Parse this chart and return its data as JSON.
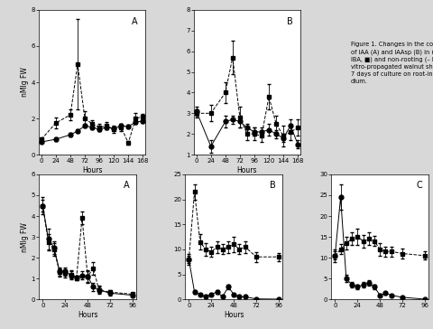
{
  "top_A": {
    "hours": [
      0,
      24,
      48,
      60,
      72,
      84,
      96,
      108,
      120,
      132,
      144,
      156,
      168
    ],
    "squares": [
      0.85,
      1.75,
      2.2,
      5.0,
      2.0,
      1.7,
      1.5,
      1.6,
      1.4,
      1.5,
      0.65,
      2.0,
      2.1
    ],
    "squares_err": [
      0.1,
      0.3,
      0.3,
      2.5,
      0.4,
      0.2,
      0.2,
      0.2,
      0.2,
      0.2,
      0.1,
      0.3,
      0.15
    ],
    "circles": [
      0.7,
      0.85,
      1.1,
      1.3,
      1.6,
      1.5,
      1.4,
      1.5,
      1.45,
      1.6,
      1.55,
      1.8,
      1.85
    ],
    "circles_err": [
      0.05,
      0.08,
      0.1,
      0.12,
      0.12,
      0.1,
      0.1,
      0.1,
      0.1,
      0.1,
      0.1,
      0.1,
      0.1
    ],
    "ylim": [
      0,
      8
    ],
    "yticks": [
      0,
      2,
      4,
      6,
      8
    ],
    "label": "A"
  },
  "top_B": {
    "hours": [
      0,
      24,
      48,
      60,
      72,
      84,
      96,
      108,
      120,
      132,
      144,
      156,
      168
    ],
    "squares": [
      3.0,
      3.0,
      4.0,
      5.7,
      2.8,
      2.0,
      2.0,
      1.9,
      3.8,
      2.5,
      1.9,
      2.1,
      2.3
    ],
    "squares_err": [
      0.2,
      0.4,
      0.5,
      0.8,
      0.5,
      0.3,
      0.3,
      0.3,
      0.6,
      0.4,
      0.5,
      0.4,
      0.4
    ],
    "circles": [
      3.1,
      1.4,
      2.6,
      2.7,
      2.6,
      2.3,
      2.1,
      2.1,
      2.2,
      2.0,
      1.8,
      2.4,
      1.5
    ],
    "circles_err": [
      0.2,
      0.3,
      0.3,
      0.2,
      0.3,
      0.2,
      0.2,
      0.2,
      0.3,
      0.2,
      0.2,
      0.3,
      0.2
    ],
    "ylim": [
      1,
      8
    ],
    "yticks": [
      1,
      2,
      3,
      4,
      5,
      6,
      7,
      8
    ],
    "label": "B"
  },
  "bot_A": {
    "hours": [
      0,
      6,
      12,
      18,
      24,
      30,
      36,
      42,
      48,
      54,
      60,
      72,
      96
    ],
    "squares": [
      4.5,
      2.75,
      2.4,
      1.3,
      1.25,
      1.2,
      1.0,
      3.9,
      1.1,
      1.5,
      0.45,
      0.35,
      0.25
    ],
    "squares_err": [
      0.4,
      0.4,
      0.3,
      0.2,
      0.2,
      0.2,
      0.1,
      0.3,
      0.3,
      0.3,
      0.2,
      0.1,
      0.05
    ],
    "circles": [
      4.5,
      2.9,
      2.5,
      1.35,
      1.35,
      1.15,
      1.05,
      1.15,
      1.1,
      0.6,
      0.45,
      0.3,
      0.2
    ],
    "circles_err": [
      0.3,
      0.5,
      0.3,
      0.2,
      0.2,
      0.2,
      0.1,
      0.2,
      0.25,
      0.2,
      0.15,
      0.1,
      0.05
    ],
    "ylim": [
      0,
      6
    ],
    "yticks": [
      0,
      1,
      2,
      3,
      4,
      5,
      6
    ],
    "label": "A"
  },
  "bot_B": {
    "hours": [
      0,
      6,
      12,
      18,
      24,
      30,
      36,
      42,
      48,
      54,
      60,
      72,
      96
    ],
    "squares": [
      8.0,
      21.5,
      11.5,
      10.0,
      9.5,
      10.5,
      10.0,
      10.5,
      11.0,
      10.0,
      10.5,
      8.5,
      8.5
    ],
    "squares_err": [
      1.0,
      1.5,
      1.5,
      1.2,
      1.0,
      1.2,
      1.0,
      1.2,
      1.5,
      1.0,
      1.2,
      1.0,
      0.8
    ],
    "circles": [
      8.0,
      1.5,
      1.0,
      0.5,
      1.0,
      1.5,
      0.5,
      2.5,
      1.0,
      0.5,
      0.5,
      0.1,
      0.05
    ],
    "circles_err": [
      0.8,
      0.3,
      0.2,
      0.1,
      0.2,
      0.3,
      0.1,
      0.5,
      0.2,
      0.1,
      0.1,
      0.05,
      0.02
    ],
    "ylim": [
      0,
      25
    ],
    "yticks": [
      0,
      5,
      10,
      15,
      20,
      25
    ],
    "label": "B"
  },
  "bot_C": {
    "hours": [
      0,
      6,
      12,
      18,
      24,
      30,
      36,
      42,
      48,
      54,
      60,
      72,
      96
    ],
    "squares": [
      10.5,
      12.0,
      13.5,
      14.5,
      15.0,
      14.0,
      14.5,
      14.0,
      12.0,
      11.5,
      11.5,
      11.0,
      10.5
    ],
    "squares_err": [
      1.0,
      1.2,
      1.5,
      1.5,
      2.0,
      1.5,
      1.5,
      1.2,
      1.5,
      1.2,
      1.2,
      1.2,
      1.0
    ],
    "circles": [
      10.5,
      24.5,
      5.0,
      3.5,
      3.0,
      3.5,
      4.0,
      3.0,
      1.0,
      1.5,
      1.0,
      0.5,
      0.05
    ],
    "circles_err": [
      1.5,
      3.0,
      0.8,
      0.6,
      0.5,
      0.6,
      0.7,
      0.5,
      0.3,
      0.3,
      0.2,
      0.1,
      0.02
    ],
    "ylim": [
      0,
      30
    ],
    "yticks": [
      0,
      5,
      10,
      15,
      20,
      25,
      30
    ],
    "label": "C"
  },
  "top_xticks": [
    0,
    24,
    48,
    72,
    96,
    120,
    144,
    168
  ],
  "bot_xticks": [
    0,
    24,
    48,
    72,
    96
  ],
  "xlabel": "Hours",
  "ylabel": "nMlg FW",
  "caption": "Figure 1. Changes in the concentrations\nof IAA (A) and IAAsp (B) in rooting (+\nIBA, ■) and non-rooting (– IBA, ●) in-\nvitro-propagated walnut shoots during\n7 days of culture on root-inducing me-\ndium.",
  "bg_color": "#d8d8d8",
  "plot_bg": "#ffffff"
}
